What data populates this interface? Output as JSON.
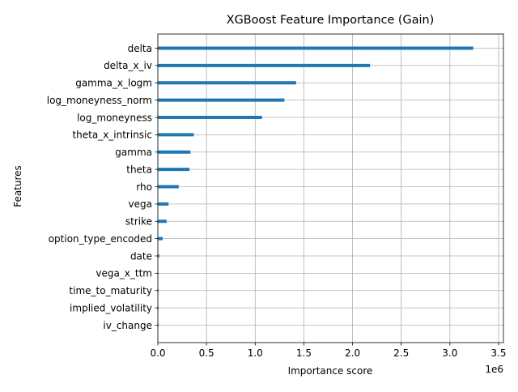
{
  "chart_data": {
    "type": "bar",
    "orientation": "horizontal",
    "title": "XGBoost Feature Importance (Gain)",
    "xlabel": "Importance score",
    "ylabel": "Features",
    "x_offset_label": "1e6",
    "x_ticks": [
      0,
      500000,
      1000000,
      1500000,
      2000000,
      2500000,
      3000000,
      3500000
    ],
    "x_tick_labels": [
      "0.0",
      "0.5",
      "1.0",
      "1.5",
      "2.0",
      "2.5",
      "3.0",
      "3.5"
    ],
    "xlim": [
      0,
      3550000
    ],
    "grid": true,
    "bar_color": "#1f77b4",
    "categories": [
      "delta",
      "delta_x_iv",
      "gamma_x_logm",
      "log_moneyness_norm",
      "log_moneyness",
      "theta_x_intrinsic",
      "gamma",
      "theta",
      "rho",
      "vega",
      "strike",
      "option_type_encoded",
      "date",
      "vega_x_ttm",
      "time_to_maturity",
      "implied_volatility",
      "iv_change"
    ],
    "values": [
      3240000,
      2180000,
      1420000,
      1300000,
      1070000,
      370000,
      335000,
      325000,
      215000,
      110000,
      90000,
      50000,
      15000,
      5000,
      3000,
      2000,
      1000
    ]
  }
}
